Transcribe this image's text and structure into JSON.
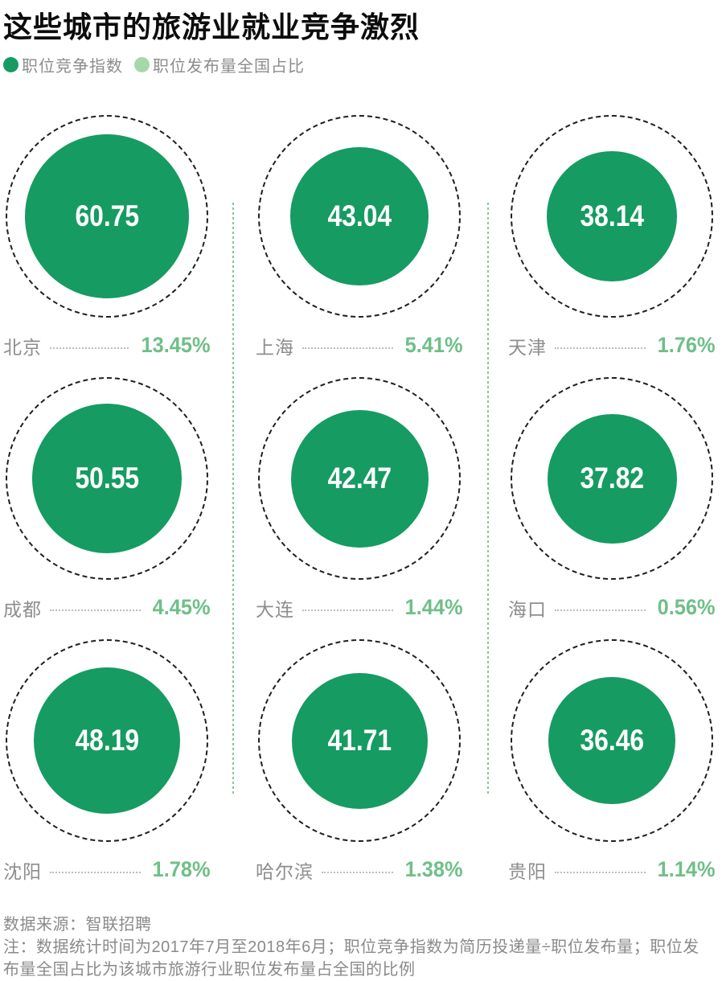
{
  "title": "这些城市的旅游业就业竞争激烈",
  "legend": {
    "items": [
      {
        "label": "职位竞争指数",
        "color": "#169b62"
      },
      {
        "label": "职位发布量全国占比",
        "color": "#a6d7ab"
      }
    ]
  },
  "colors": {
    "index_green": "#169b62",
    "share_green": "#6fbf87",
    "legend_light_green": "#a6d7ab",
    "divider_green": "#84c79a",
    "ring_black": "#1f1f1f",
    "label_gray": "#8e8e8e"
  },
  "chart_data": {
    "type": "bubble",
    "title": "这些城市的旅游业就业竞争激烈",
    "layout": "3x3 grid of cities; equal dashed outer rings; solid green bubble area proportional to 职位竞争指数; share % shown beside city name",
    "legend_position": "top",
    "categories": [
      "北京",
      "上海",
      "天津",
      "成都",
      "大连",
      "海口",
      "沈阳",
      "哈尔滨",
      "贵阳"
    ],
    "series": [
      {
        "name": "职位竞争指数",
        "values": [
          60.75,
          43.04,
          38.14,
          50.55,
          42.47,
          37.82,
          48.19,
          41.71,
          36.46
        ]
      },
      {
        "name": "职位发布量全国占比(%)",
        "values": [
          13.45,
          5.41,
          1.76,
          4.45,
          1.44,
          0.56,
          1.78,
          1.38,
          1.14
        ]
      }
    ],
    "points": [
      {
        "city": "北京",
        "index": "60.75",
        "share": "13.45%"
      },
      {
        "city": "上海",
        "index": "43.04",
        "share": "5.41%"
      },
      {
        "city": "天津",
        "index": "38.14",
        "share": "1.76%"
      },
      {
        "city": "成都",
        "index": "50.55",
        "share": "4.45%"
      },
      {
        "city": "大连",
        "index": "42.47",
        "share": "1.44%"
      },
      {
        "city": "海口",
        "index": "37.82",
        "share": "0.56%"
      },
      {
        "city": "沈阳",
        "index": "48.19",
        "share": "1.78%"
      },
      {
        "city": "哈尔滨",
        "index": "41.71",
        "share": "1.38%"
      },
      {
        "city": "贵阳",
        "index": "36.46",
        "share": "1.14%"
      }
    ]
  },
  "footer": {
    "source": "数据来源：智联招聘",
    "note": "注：数据统计时间为2017年7月至2018年6月；职位竞争指数为简历投递量÷职位发布量；职位发布量全国占比为该城市旅游行业职位发布量占全国的比例"
  }
}
